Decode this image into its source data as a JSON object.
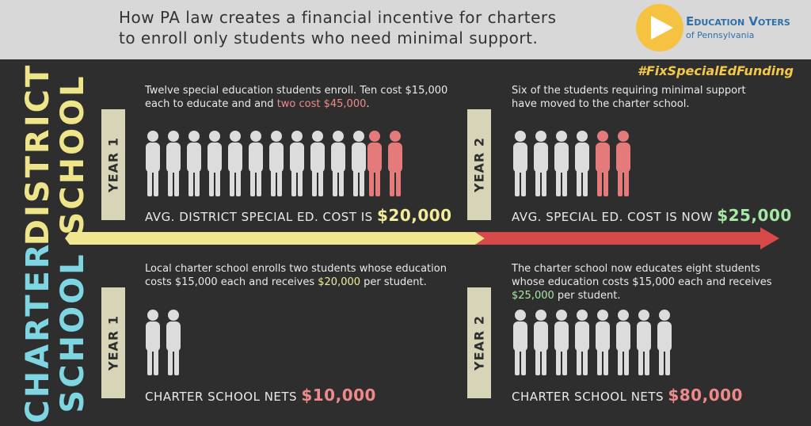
{
  "header": {
    "title_lines": [
      "How PA law creates a financial incentive for charters",
      "to enroll only students who need minimal support."
    ]
  },
  "logo": {
    "name": "Education Voters",
    "subtitle": "of Pennsylvania"
  },
  "hashtag": "#FixSpecialEdFunding",
  "sections": [
    {
      "label": [
        "DISTRICT",
        "SCHOOL"
      ],
      "color": "#eee58a",
      "panels": [
        {
          "year": "YEAR 1",
          "text": [
            {
              "text": "Twelve special education students enroll. Ten cost $15,000 each to educate and and "
            },
            {
              "text": "two cost $45,000",
              "color": "#f08a8a"
            },
            {
              "text": "."
            }
          ],
          "footer": [
            {
              "text": "AVG. DISTRICT SPECIAL ED. COST IS "
            },
            {
              "text": "$20,000",
              "color": "#f3ec9a"
            }
          ]
        },
        {
          "year": "YEAR 2",
          "text": [
            {
              "text": "Six of the students requiring minimal support have moved to the charter school."
            }
          ],
          "footer": [
            {
              "text": "AVG. SPECIAL ED. COST IS NOW "
            },
            {
              "text": "$25,000",
              "color": "#a6e8a6"
            }
          ]
        }
      ]
    },
    {
      "label": [
        "CHARTER",
        "SCHOOL"
      ],
      "color": "#7fd6e3",
      "panels": [
        {
          "year": "YEAR 1",
          "text": [
            {
              "text": "Local charter school enrolls two students whose education costs $15,000 each and receives "
            },
            {
              "text": "$20,000",
              "color": "#f3ec9a"
            },
            {
              "text": " per student."
            }
          ],
          "footer": [
            {
              "text": "CHARTER SCHOOL NETS "
            },
            {
              "text": "$10,000",
              "color": "#f08a8a"
            }
          ]
        },
        {
          "year": "YEAR 2",
          "text": [
            {
              "text": "The charter school now educates eight students whose education costs $15,000 each and receives "
            },
            {
              "text": "$25,000",
              "color": "#a6e8a6"
            },
            {
              "text": " per student."
            }
          ],
          "footer": [
            {
              "text": "CHARTER SCHOOL NETS "
            },
            {
              "text": "$80,000",
              "color": "#f08a8a"
            }
          ]
        }
      ]
    }
  ]
}
